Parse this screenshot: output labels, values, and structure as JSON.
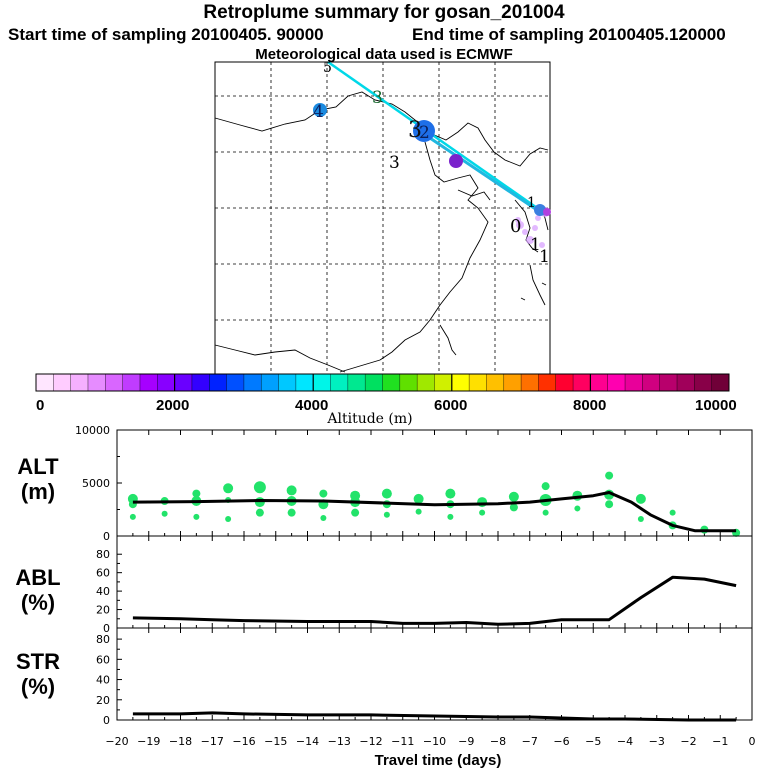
{
  "header": {
    "title": "Retroplume summary for gosan_201004",
    "start": "Start time of sampling 20100405. 90000",
    "end": "End time of sampling 20100405.120000",
    "met": "Meteorological data used is ECMWF"
  },
  "map": {
    "point_labels": [
      "5",
      "3",
      "4",
      "3",
      "2",
      "3",
      "1",
      "0",
      "1",
      "1"
    ]
  },
  "colorbar": {
    "label": "Altitude (m)",
    "ticks": [
      "0",
      "2000",
      "4000",
      "6000",
      "8000",
      "10000"
    ],
    "colors": [
      "#ffe6ff",
      "#ffccff",
      "#f5b0ff",
      "#e68cff",
      "#d966ff",
      "#c03cff",
      "#a600ff",
      "#8800ff",
      "#6a00ff",
      "#3300ff",
      "#0022ff",
      "#0050ff",
      "#007aff",
      "#00a0ff",
      "#00c8ff",
      "#00e6ff",
      "#00f5e8",
      "#00f0c0",
      "#00e890",
      "#00e060",
      "#20e020",
      "#60e000",
      "#a0e800",
      "#d0f000",
      "#ffff00",
      "#ffe000",
      "#ffc000",
      "#ffa000",
      "#ff7000",
      "#ff3000",
      "#ff0030",
      "#ff0060",
      "#ff0090",
      "#ff00b0",
      "#e8009a",
      "#d00080",
      "#b8006c",
      "#a0005a",
      "#880048",
      "#700038"
    ]
  },
  "chart_data": [
    {
      "type": "scatter",
      "panel": "ALT",
      "title": "ALT",
      "unit": "(m)",
      "ylim": [
        0,
        10000
      ],
      "yticks": [
        0,
        5000,
        10000
      ],
      "ytick_labels": [
        "0",
        "5000",
        "10000"
      ],
      "line": {
        "x": [
          -19.5,
          -17.5,
          -15.5,
          -13.5,
          -11.5,
          -10,
          -9,
          -8,
          -7,
          -6,
          -5,
          -4.5,
          -3.8,
          -3.2,
          -2.5,
          -1.8,
          -1.2,
          -0.5
        ],
        "y": [
          3200,
          3250,
          3350,
          3300,
          3100,
          2950,
          3000,
          3050,
          3200,
          3500,
          3800,
          4100,
          3200,
          2000,
          1000,
          500,
          500,
          500
        ]
      },
      "points": {
        "x": [
          -19.5,
          -19.5,
          -19.5,
          -18.5,
          -18.5,
          -17.5,
          -17.5,
          -17.5,
          -16.5,
          -16.5,
          -16.5,
          -15.5,
          -15.5,
          -15.5,
          -14.5,
          -14.5,
          -14.5,
          -13.5,
          -13.5,
          -13.5,
          -12.5,
          -12.5,
          -12.5,
          -11.5,
          -11.5,
          -11.5,
          -10.5,
          -10.5,
          -9.5,
          -9.5,
          -9.5,
          -8.5,
          -8.5,
          -7.5,
          -7.5,
          -6.5,
          -6.5,
          -6.5,
          -5.5,
          -5.5,
          -4.5,
          -4.5,
          -4.5,
          -3.5,
          -3.5,
          -2.5,
          -2.5,
          -1.5,
          -0.5,
          -0.5
        ],
        "y": [
          1800,
          3000,
          3500,
          2100,
          3300,
          4000,
          1800,
          3300,
          3400,
          4500,
          1600,
          2200,
          3200,
          4600,
          2200,
          3300,
          4300,
          1700,
          3000,
          4000,
          2200,
          3200,
          3800,
          2000,
          3000,
          4000,
          2300,
          3500,
          3000,
          4000,
          1800,
          2200,
          3200,
          2700,
          3700,
          2200,
          3400,
          4700,
          2600,
          3800,
          3000,
          3900,
          5700,
          1600,
          3500,
          1000,
          2200,
          600,
          400,
          300
        ],
        "sizes": [
          3,
          4,
          5,
          3,
          4,
          4,
          3,
          5,
          3,
          5,
          3,
          4,
          5,
          6,
          4,
          5,
          5,
          3,
          5,
          4,
          4,
          5,
          5,
          3,
          4,
          5,
          3,
          5,
          4,
          5,
          3,
          3,
          5,
          4,
          5,
          3,
          6,
          4,
          3,
          5,
          4,
          5,
          4,
          3,
          5,
          4,
          3,
          4,
          3,
          4
        ]
      }
    },
    {
      "type": "line",
      "panel": "ABL",
      "title": "ABL",
      "unit": "(%)",
      "ylim": [
        0,
        90
      ],
      "yticks": [
        0,
        20,
        40,
        60,
        80
      ],
      "ytick_labels": [
        "0",
        "20",
        "40",
        "60",
        "80"
      ],
      "x": [
        -19.5,
        -18,
        -17,
        -16,
        -14,
        -12,
        -11,
        -10,
        -9,
        -8,
        -7,
        -6,
        -5,
        -4.5,
        -3.5,
        -2.5,
        -1.5,
        -0.5
      ],
      "y": [
        11,
        10,
        9,
        8,
        7,
        7,
        5,
        5,
        6,
        4,
        5,
        9,
        9,
        9,
        33,
        55,
        53,
        46
      ]
    },
    {
      "type": "line",
      "panel": "STR",
      "title": "STR",
      "unit": "(%)",
      "ylim": [
        0,
        90
      ],
      "yticks": [
        0,
        20,
        40,
        60,
        80
      ],
      "ytick_labels": [
        "0",
        "20",
        "40",
        "60",
        "80"
      ],
      "x": [
        -19.5,
        -18,
        -17,
        -16,
        -14,
        -12,
        -10,
        -8,
        -7,
        -5,
        -4,
        -2,
        -0.5
      ],
      "y": [
        6,
        6,
        7,
        6,
        5,
        5,
        4,
        3,
        3,
        1,
        1,
        0,
        0
      ]
    }
  ],
  "xaxis": {
    "label": "Travel time (days)",
    "ticks": [
      -20,
      -19,
      -18,
      -17,
      -16,
      -15,
      -14,
      -13,
      -12,
      -11,
      -10,
      -9,
      -8,
      -7,
      -6,
      -5,
      -4,
      -3,
      -2,
      -1,
      0
    ],
    "tick_labels": [
      "−20",
      "−19",
      "−18",
      "−17",
      "−16",
      "−15",
      "−14",
      "−13",
      "−12",
      "−11",
      "−10",
      "−9",
      "−8",
      "−7",
      "−6",
      "−5",
      "−4",
      "−3",
      "−2",
      "−1",
      "0"
    ]
  }
}
